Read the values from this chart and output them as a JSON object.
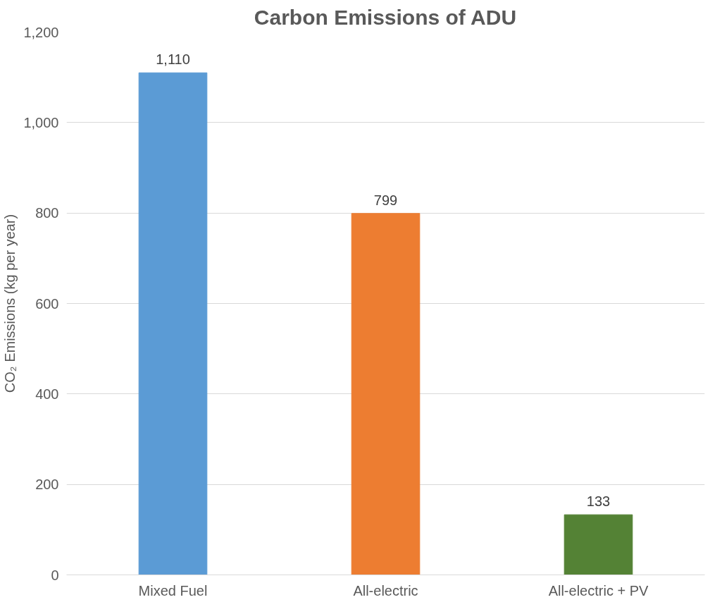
{
  "chart_data": {
    "type": "bar",
    "title": "Carbon Emissions of ADU",
    "ylabel": "CO₂ Emissions (kg per year)",
    "categories": [
      "Mixed Fuel",
      "All-electric",
      "All-electric + PV"
    ],
    "values": [
      1110,
      799,
      133
    ],
    "colors": [
      "#5b9bd5",
      "#ed7d31",
      "#548235"
    ],
    "value_labels": [
      "1,110",
      "799",
      "133"
    ],
    "ylim": [
      0,
      1200
    ],
    "yticks": [
      0,
      200,
      400,
      600,
      800,
      {
        "value": 1000,
        "label": "1,000"
      },
      {
        "value": 1200,
        "label": "1,200"
      }
    ],
    "grid": "y"
  }
}
